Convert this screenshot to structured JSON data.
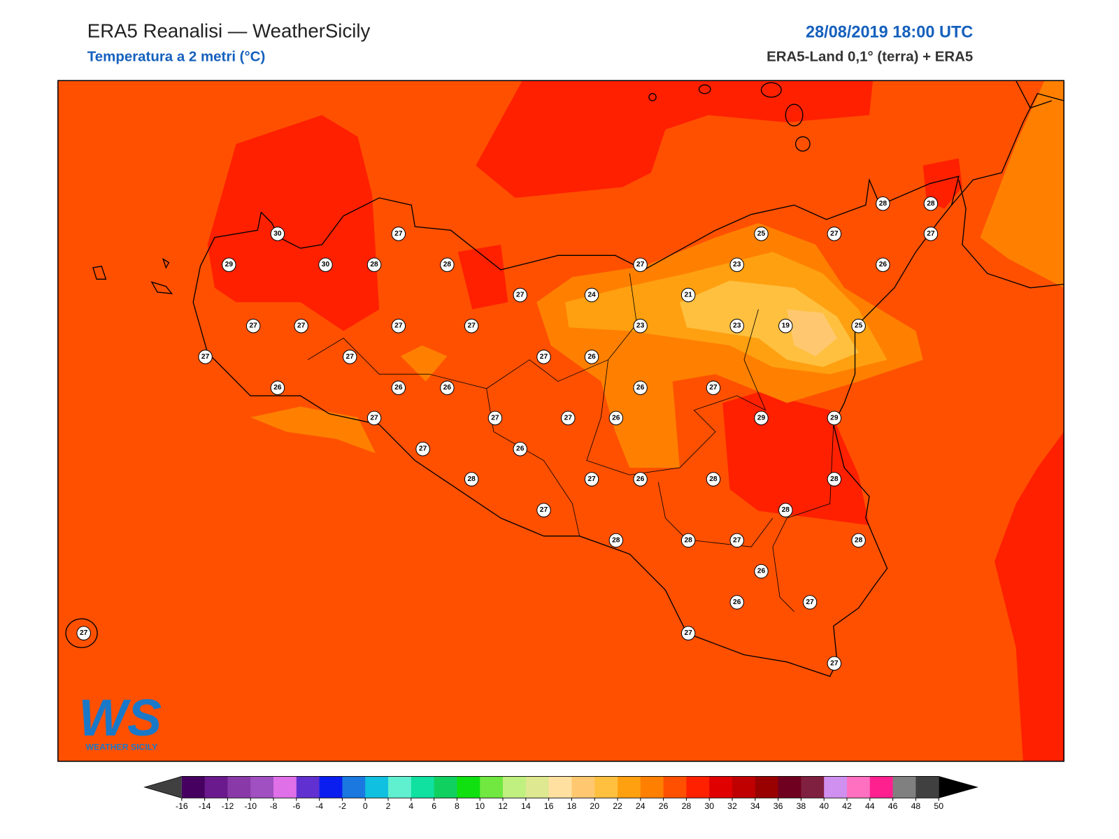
{
  "header": {
    "title": "ERA5 Reanalisi — WeatherSicily",
    "subtitle": "Temperatura a 2 metri (°C)",
    "datetime": "28/08/2019 18:00 UTC",
    "source": "ERA5-Land 0,1° (terra) + ERA5"
  },
  "stations": {
    "values": [
      30,
      27,
      29,
      30,
      28,
      28,
      27,
      24,
      27,
      25,
      27,
      28,
      28,
      27,
      23,
      26,
      21,
      27,
      27,
      27,
      27,
      23,
      23,
      19,
      25,
      27,
      27,
      27,
      26,
      26,
      26,
      26,
      26,
      27,
      27,
      27,
      27,
      26,
      29,
      29,
      27,
      26,
      28,
      27,
      26,
      28,
      28,
      27,
      28,
      28,
      28,
      27,
      28,
      26,
      26,
      27,
      27,
      27,
      27
    ]
  },
  "colorbar": {
    "ticks": [
      -16,
      -14,
      -12,
      -10,
      -8,
      -6,
      -4,
      -2,
      0,
      2,
      4,
      6,
      8,
      10,
      12,
      14,
      16,
      18,
      20,
      22,
      24,
      26,
      28,
      30,
      32,
      34,
      36,
      38,
      40,
      42,
      44,
      46,
      48,
      50
    ],
    "colors": [
      "#450060",
      "#6a1a8c",
      "#8a3aa8",
      "#a050c0",
      "#e070e8",
      "#6030d0",
      "#0a1ef0",
      "#1a78e0",
      "#10c0e0",
      "#60f0d0",
      "#10e0a0",
      "#10d060",
      "#10e010",
      "#70e840",
      "#c0f080",
      "#dde890",
      "#ffe0a0",
      "#ffc870",
      "#ffc040",
      "#ffa010",
      "#ff8000",
      "#ff5000",
      "#ff2000",
      "#e00000",
      "#c00000",
      "#990000",
      "#700020",
      "#802040",
      "#d090f0",
      "#ff70c0",
      "#ff2090",
      "#808080",
      "#404040"
    ],
    "under_color": "#404040",
    "over_color": "#000000"
  },
  "logo": {
    "mark": "WS",
    "name": "WEATHER SICILY"
  }
}
